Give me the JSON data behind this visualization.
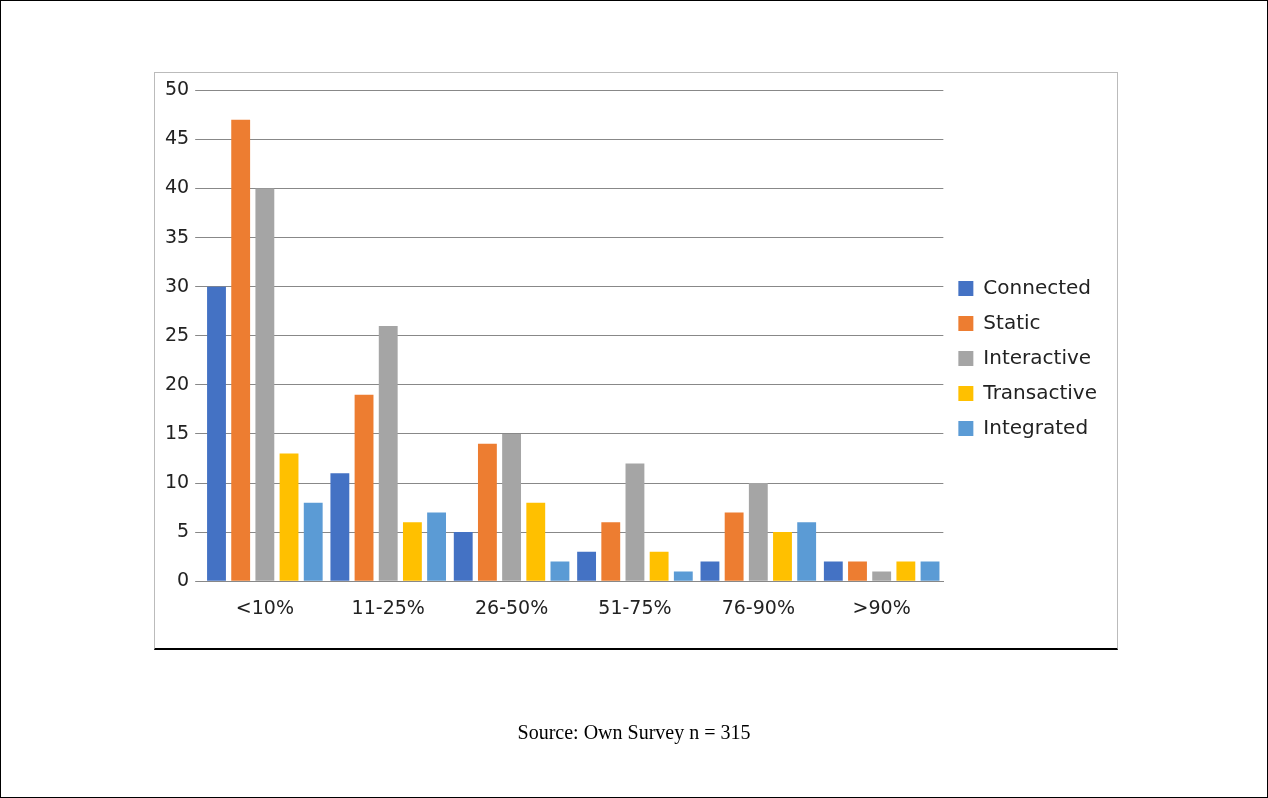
{
  "chart_data": {
    "type": "bar",
    "categories": [
      "<10%",
      "11-25%",
      "26-50%",
      "51-75%",
      "76-90%",
      ">90%"
    ],
    "series": [
      {
        "name": "Connected",
        "color": "#4472c4",
        "values": [
          30,
          11,
          5,
          3,
          2,
          2
        ]
      },
      {
        "name": "Static",
        "color": "#ed7d31",
        "values": [
          47,
          19,
          14,
          6,
          7,
          2
        ]
      },
      {
        "name": "Interactive",
        "color": "#a5a5a5",
        "values": [
          40,
          26,
          15,
          12,
          10,
          1
        ]
      },
      {
        "name": "Transactive",
        "color": "#ffc000",
        "values": [
          13,
          6,
          8,
          3,
          5,
          2
        ]
      },
      {
        "name": "Integrated",
        "color": "#5b9bd5",
        "values": [
          8,
          7,
          2,
          1,
          6,
          2
        ]
      }
    ],
    "ylim": [
      0,
      50
    ],
    "yticks": [
      0,
      5,
      10,
      15,
      20,
      25,
      30,
      35,
      40,
      45,
      50
    ],
    "grid": "y",
    "legend": "right",
    "annotations": [
      "Source: Own Survey n = 315"
    ]
  }
}
